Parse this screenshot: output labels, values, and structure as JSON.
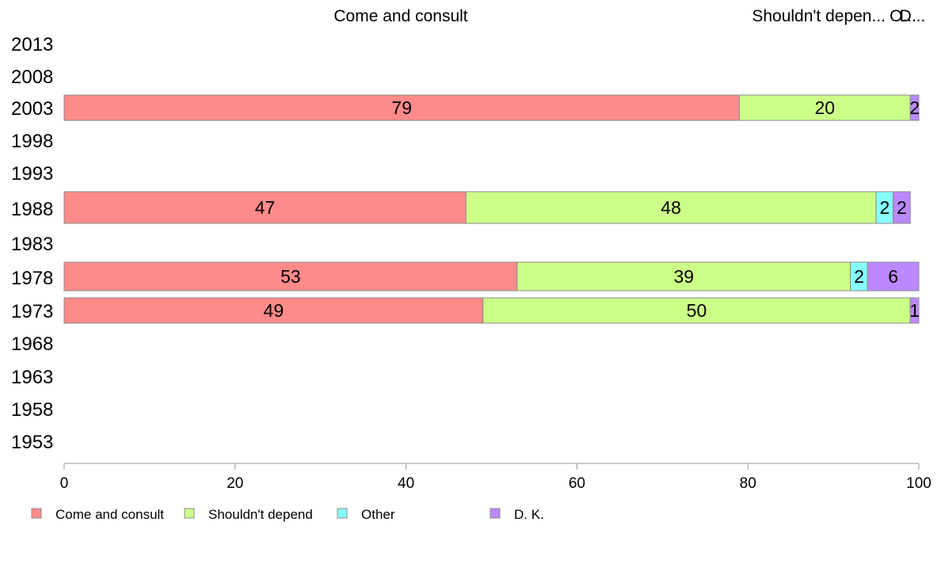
{
  "chart_data": {
    "type": "bar",
    "orientation": "horizontal",
    "stacked": true,
    "categories": [
      "2013",
      "2008",
      "2003",
      "1998",
      "1993",
      "1988",
      "1983",
      "1978",
      "1973",
      "1968",
      "1963",
      "1958",
      "1953"
    ],
    "series": [
      {
        "name": "Come and consult",
        "color": "#ff8a8a",
        "values": [
          null,
          null,
          79,
          null,
          null,
          47,
          null,
          53,
          49,
          null,
          null,
          null,
          null
        ]
      },
      {
        "name": "Shouldn't depend",
        "color": "#ccff88",
        "values": [
          null,
          null,
          20,
          null,
          null,
          48,
          null,
          39,
          50,
          null,
          null,
          null,
          null
        ]
      },
      {
        "name": "Other",
        "color": "#88ffff",
        "values": [
          null,
          null,
          0,
          null,
          null,
          2,
          null,
          2,
          0,
          null,
          null,
          null,
          null
        ]
      },
      {
        "name": "D. K.",
        "color": "#bb88ff",
        "values": [
          null,
          null,
          2,
          null,
          null,
          2,
          null,
          6,
          1,
          null,
          null,
          null,
          null
        ]
      }
    ],
    "top_labels": [
      "Come and consult",
      "Shouldn't depen...",
      "O...",
      "D..."
    ],
    "xlim": [
      0,
      100
    ],
    "xticks": [
      "0",
      "20",
      "40",
      "60",
      "80",
      "100"
    ],
    "grid": false,
    "legend_position": "bottom-left",
    "legend": [
      "Come and consult",
      "Shouldn't depend",
      "Other",
      "D. K."
    ]
  }
}
